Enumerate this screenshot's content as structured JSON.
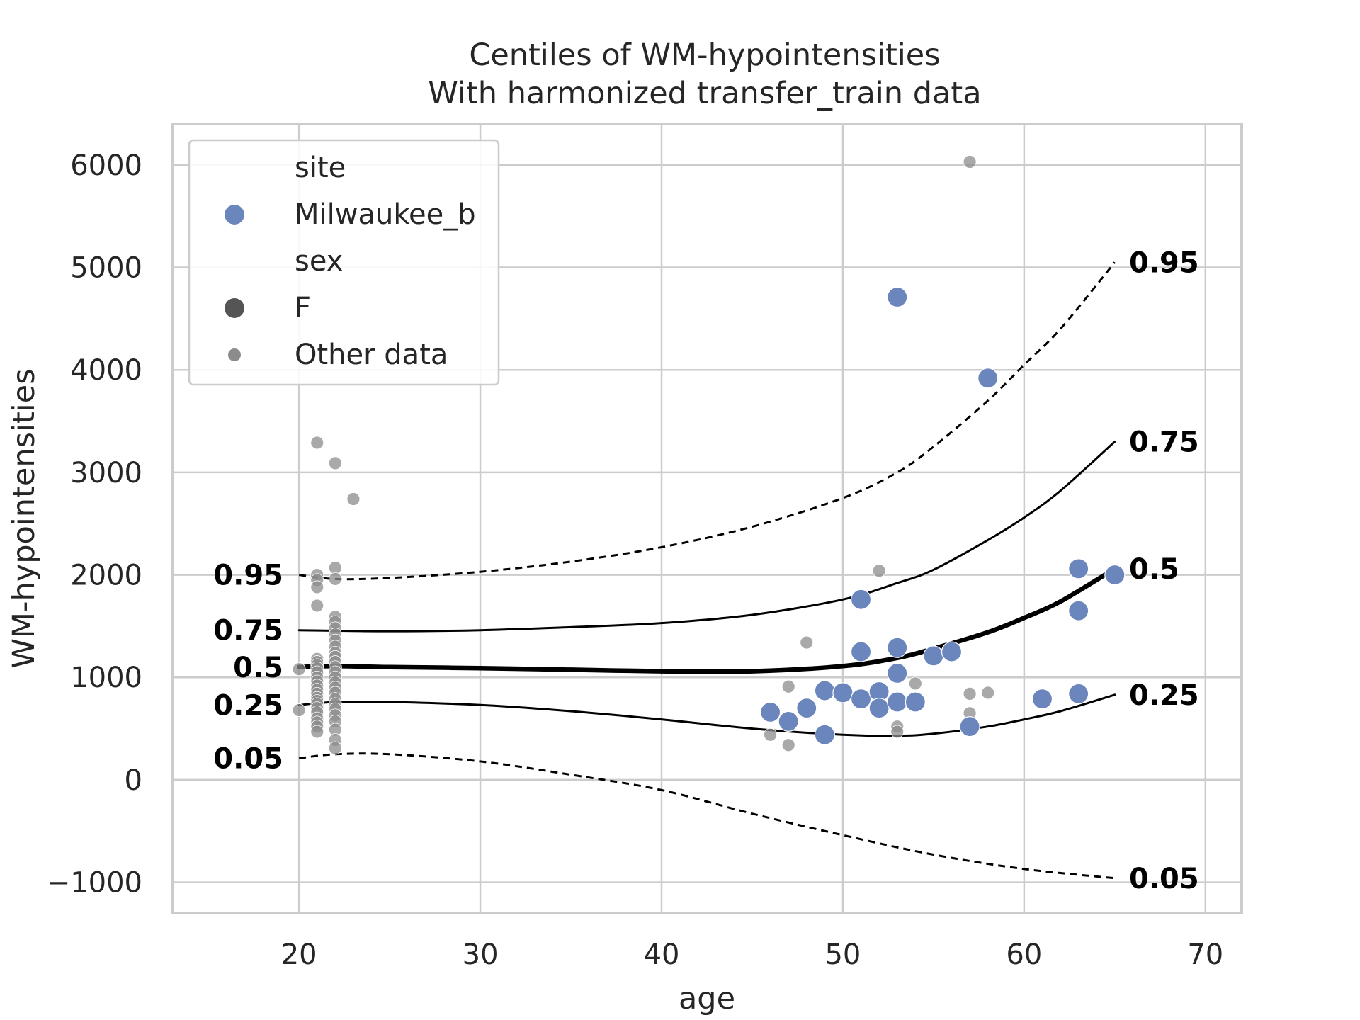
{
  "chart_data": {
    "type": "scatter",
    "title": "Centiles of WM-hypointensities",
    "subtitle": "With harmonized transfer_train data",
    "xlabel": "age",
    "ylabel": "WM-hypointensities",
    "xlim": [
      13,
      72
    ],
    "ylim": [
      -1300,
      6400
    ],
    "xticks": [
      20,
      30,
      40,
      50,
      60,
      70
    ],
    "yticks": [
      -1000,
      0,
      1000,
      2000,
      3000,
      4000,
      5000,
      6000
    ],
    "xtick_labels": [
      "20",
      "30",
      "40",
      "50",
      "60",
      "70"
    ],
    "ytick_labels": [
      "−1000",
      "0",
      "1000",
      "2000",
      "3000",
      "4000",
      "5000",
      "6000"
    ],
    "grid": true,
    "colors": {
      "site": "#6b86bd",
      "other": "#8c8c8c",
      "grid": "#cccccc",
      "curve": "#000000"
    },
    "legend": {
      "placement": "upper-left",
      "entries": [
        {
          "label": "site",
          "kind": "header"
        },
        {
          "label": "Milwaukee_b",
          "kind": "site"
        },
        {
          "label": "sex",
          "kind": "header"
        },
        {
          "label": "F",
          "kind": "sex"
        },
        {
          "label": "Other data",
          "kind": "other"
        }
      ]
    },
    "centiles": [
      {
        "name": "0.95",
        "style": "dashed",
        "x": [
          20,
          22,
          25,
          30,
          35,
          40,
          45,
          50,
          53,
          55,
          58,
          60,
          62,
          65
        ],
        "y": [
          2000,
          1960,
          1970,
          2030,
          2130,
          2270,
          2470,
          2750,
          3000,
          3250,
          3700,
          4050,
          4400,
          5050
        ]
      },
      {
        "name": "0.75",
        "style": "solid",
        "x": [
          20,
          25,
          30,
          35,
          40,
          45,
          50,
          53,
          55,
          58,
          60,
          62,
          65
        ],
        "y": [
          1460,
          1450,
          1460,
          1490,
          1530,
          1610,
          1760,
          1920,
          2050,
          2340,
          2560,
          2820,
          3300
        ]
      },
      {
        "name": "0.5",
        "style": "bold",
        "x": [
          20,
          22,
          25,
          30,
          35,
          40,
          45,
          50,
          53,
          55,
          58,
          60,
          62,
          65
        ],
        "y": [
          1100,
          1110,
          1100,
          1090,
          1075,
          1060,
          1060,
          1110,
          1190,
          1280,
          1440,
          1580,
          1740,
          2060
        ]
      },
      {
        "name": "0.25",
        "style": "solid",
        "x": [
          20,
          22,
          25,
          30,
          35,
          40,
          45,
          50,
          53,
          55,
          58,
          60,
          62,
          65
        ],
        "y": [
          730,
          760,
          760,
          730,
          670,
          590,
          500,
          440,
          430,
          450,
          520,
          590,
          670,
          830
        ]
      },
      {
        "name": "0.05",
        "style": "dashed",
        "x": [
          20,
          22,
          25,
          30,
          35,
          40,
          45,
          50,
          55,
          60,
          65
        ],
        "y": [
          210,
          250,
          250,
          180,
          50,
          -100,
          -330,
          -540,
          -730,
          -870,
          -960
        ]
      }
    ],
    "series": [
      {
        "name": "Milwaukee_b",
        "kind": "site",
        "points": [
          [
            46,
            660
          ],
          [
            47,
            570
          ],
          [
            48,
            700
          ],
          [
            49,
            870
          ],
          [
            49,
            440
          ],
          [
            50,
            850
          ],
          [
            51,
            1760
          ],
          [
            51,
            1250
          ],
          [
            51,
            790
          ],
          [
            52,
            860
          ],
          [
            52,
            700
          ],
          [
            53,
            4710
          ],
          [
            53,
            1290
          ],
          [
            53,
            1040
          ],
          [
            53,
            760
          ],
          [
            54,
            760
          ],
          [
            55,
            1210
          ],
          [
            56,
            1250
          ],
          [
            57,
            520
          ],
          [
            58,
            3920
          ],
          [
            61,
            790
          ],
          [
            63,
            2060
          ],
          [
            63,
            1650
          ],
          [
            63,
            840
          ],
          [
            65,
            2000
          ]
        ]
      },
      {
        "name": "Other data",
        "kind": "other",
        "points": [
          [
            20,
            1080
          ],
          [
            20,
            680
          ],
          [
            21,
            3290
          ],
          [
            21,
            2000
          ],
          [
            21,
            1950
          ],
          [
            21,
            1880
          ],
          [
            21,
            1700
          ],
          [
            21,
            1180
          ],
          [
            21,
            1150
          ],
          [
            21,
            1120
          ],
          [
            21,
            1090
          ],
          [
            21,
            1050
          ],
          [
            21,
            1000
          ],
          [
            21,
            960
          ],
          [
            21,
            920
          ],
          [
            21,
            880
          ],
          [
            21,
            840
          ],
          [
            21,
            800
          ],
          [
            21,
            770
          ],
          [
            21,
            740
          ],
          [
            21,
            700
          ],
          [
            21,
            660
          ],
          [
            21,
            600
          ],
          [
            21,
            560
          ],
          [
            21,
            520
          ],
          [
            21,
            470
          ],
          [
            22,
            3090
          ],
          [
            22,
            2070
          ],
          [
            22,
            1960
          ],
          [
            22,
            1590
          ],
          [
            22,
            1540
          ],
          [
            22,
            1480
          ],
          [
            22,
            1420
          ],
          [
            22,
            1360
          ],
          [
            22,
            1300
          ],
          [
            22,
            1240
          ],
          [
            22,
            1200
          ],
          [
            22,
            1150
          ],
          [
            22,
            1100
          ],
          [
            22,
            1050
          ],
          [
            22,
            1000
          ],
          [
            22,
            950
          ],
          [
            22,
            900
          ],
          [
            22,
            850
          ],
          [
            22,
            790
          ],
          [
            22,
            740
          ],
          [
            22,
            690
          ],
          [
            22,
            630
          ],
          [
            22,
            570
          ],
          [
            22,
            490
          ],
          [
            22,
            390
          ],
          [
            22,
            310
          ],
          [
            23,
            2740
          ],
          [
            46,
            440
          ],
          [
            47,
            910
          ],
          [
            47,
            340
          ],
          [
            48,
            1340
          ],
          [
            52,
            2040
          ],
          [
            53,
            520
          ],
          [
            53,
            470
          ],
          [
            54,
            940
          ],
          [
            57,
            6030
          ],
          [
            57,
            840
          ],
          [
            57,
            650
          ],
          [
            58,
            850
          ]
        ]
      }
    ]
  }
}
